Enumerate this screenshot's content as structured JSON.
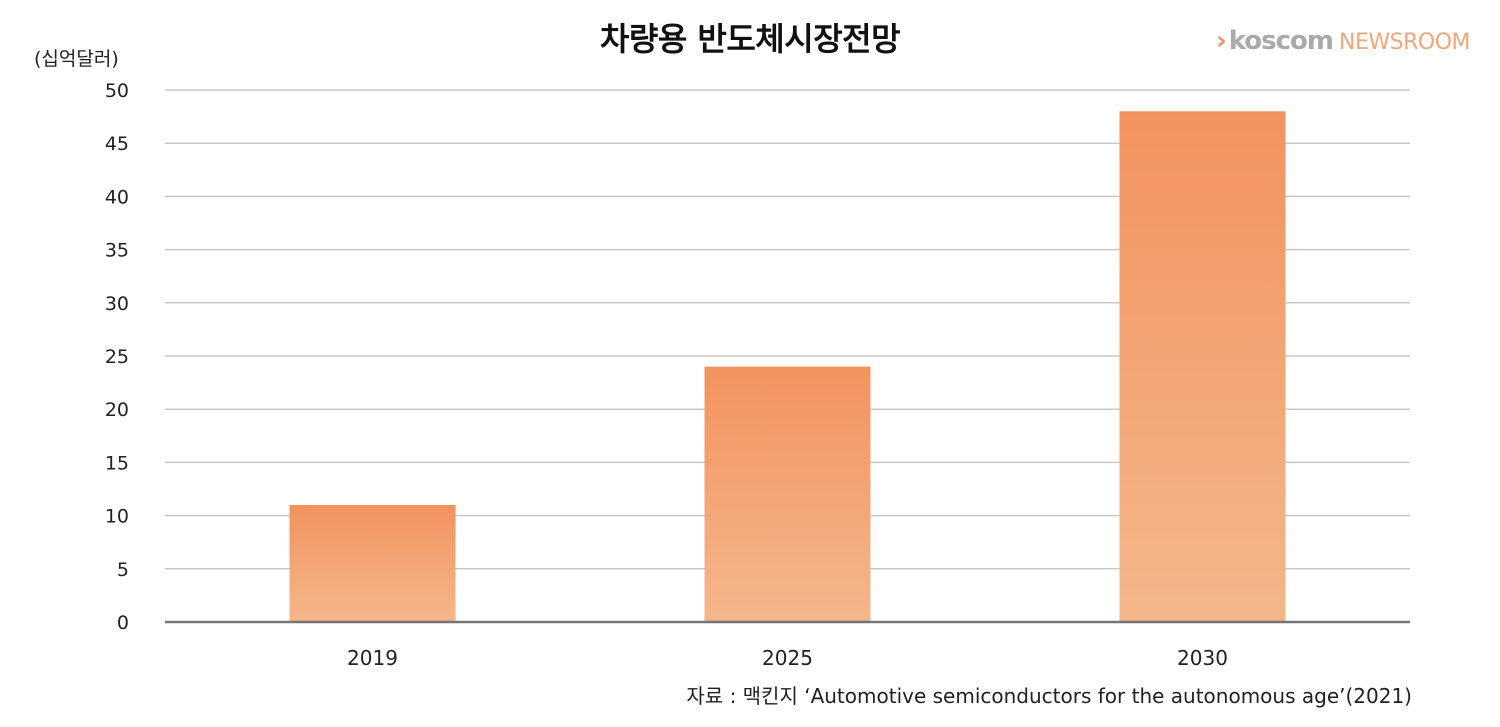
{
  "header": {
    "title": "차량용 반도체시장전망",
    "unit_label": "(십억달러)"
  },
  "logo": {
    "chevron": "›",
    "brand": "koscom",
    "sub": "NEWSROOM"
  },
  "source_note": "자료 : 맥킨지 ‘Automotive semiconductors for the autonomous age’(2021)",
  "colors": {
    "bar_top": "#f2935e",
    "bar_bottom": "#f4b78c",
    "grid": "#c8c8c8",
    "axis": "#777777"
  },
  "chart_data": {
    "type": "bar",
    "title": "차량용 반도체시장전망",
    "ylabel": "(십억달러)",
    "xlabel": "",
    "categories": [
      "2019",
      "2025",
      "2030"
    ],
    "values": [
      11,
      24,
      48
    ],
    "ylim": [
      0,
      50
    ],
    "yticks": [
      0,
      5,
      10,
      15,
      20,
      25,
      30,
      35,
      40,
      45,
      50
    ],
    "grid": true,
    "legend": "none"
  }
}
